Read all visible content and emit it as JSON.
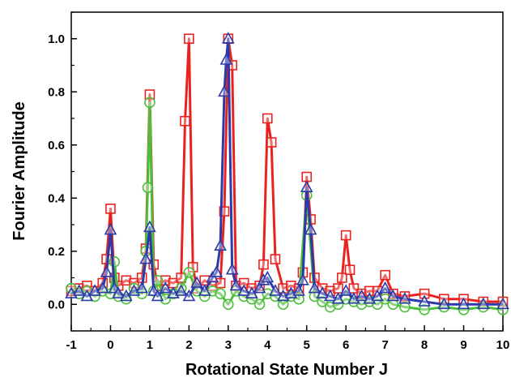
{
  "chart_data": {
    "type": "line",
    "xlabel": "Rotational State Number J",
    "ylabel": "Fourier Amplitude",
    "xlim": [
      -1,
      10
    ],
    "ylim": [
      -0.1,
      1.1
    ],
    "x_ticks": [
      -1,
      0,
      1,
      2,
      3,
      4,
      5,
      6,
      7,
      8,
      9,
      10
    ],
    "y_ticks": [
      0.0,
      0.2,
      0.4,
      0.6,
      0.8,
      1.0
    ],
    "x_tick_labels": [
      "-1",
      "0",
      "1",
      "2",
      "3",
      "4",
      "5",
      "6",
      "7",
      "8",
      "9",
      "10"
    ],
    "y_tick_labels": [
      "0.0",
      "0.2",
      "0.4",
      "0.6",
      "0.8",
      "1.0"
    ],
    "grid": false,
    "legend": "none",
    "series": [
      {
        "marker": "square",
        "color": "#e8231f",
        "x": [
          -1.0,
          -0.8,
          -0.6,
          -0.4,
          -0.2,
          -0.1,
          0.0,
          0.1,
          0.2,
          0.4,
          0.6,
          0.8,
          0.9,
          1.0,
          1.1,
          1.2,
          1.4,
          1.6,
          1.8,
          1.9,
          2.0,
          2.1,
          2.2,
          2.4,
          2.6,
          2.8,
          2.9,
          3.0,
          3.1,
          3.2,
          3.4,
          3.6,
          3.8,
          3.9,
          4.0,
          4.1,
          4.2,
          4.4,
          4.6,
          4.8,
          4.9,
          5.0,
          5.1,
          5.2,
          5.4,
          5.6,
          5.8,
          5.9,
          6.0,
          6.1,
          6.2,
          6.4,
          6.6,
          6.8,
          7.0,
          7.2,
          7.5,
          8.0,
          8.5,
          9.0,
          9.5,
          10.0
        ],
        "y": [
          0.05,
          0.06,
          0.07,
          0.05,
          0.08,
          0.17,
          0.36,
          0.1,
          0.07,
          0.09,
          0.08,
          0.1,
          0.21,
          0.79,
          0.15,
          0.07,
          0.09,
          0.08,
          0.1,
          0.69,
          1.0,
          0.14,
          0.06,
          0.09,
          0.07,
          0.08,
          0.35,
          1.0,
          0.9,
          0.07,
          0.08,
          0.06,
          0.07,
          0.15,
          0.7,
          0.61,
          0.17,
          0.06,
          0.07,
          0.06,
          0.12,
          0.48,
          0.32,
          0.1,
          0.06,
          0.05,
          0.06,
          0.1,
          0.26,
          0.13,
          0.06,
          0.04,
          0.05,
          0.05,
          0.11,
          0.04,
          0.03,
          0.04,
          0.02,
          0.02,
          0.01,
          0.01
        ]
      },
      {
        "marker": "circle",
        "color": "#4cbf3a",
        "x": [
          -1.0,
          -0.8,
          -0.6,
          -0.4,
          -0.2,
          0.0,
          0.1,
          0.2,
          0.4,
          0.6,
          0.8,
          0.9,
          0.95,
          1.0,
          1.1,
          1.2,
          1.4,
          1.6,
          1.8,
          2.0,
          2.2,
          2.4,
          2.6,
          2.8,
          3.0,
          3.2,
          3.4,
          3.6,
          3.8,
          4.0,
          4.2,
          4.4,
          4.6,
          4.8,
          5.0,
          5.2,
          5.4,
          5.6,
          5.8,
          6.0,
          6.2,
          6.4,
          6.6,
          6.8,
          7.0,
          7.2,
          7.5,
          8.0,
          8.5,
          9.0,
          9.5,
          10.0
        ],
        "y": [
          0.06,
          0.04,
          0.05,
          0.03,
          0.05,
          0.04,
          0.16,
          0.03,
          0.02,
          0.06,
          0.04,
          0.2,
          0.44,
          0.76,
          0.05,
          0.09,
          0.02,
          0.04,
          0.06,
          0.12,
          0.05,
          0.03,
          0.05,
          0.04,
          0.0,
          0.05,
          0.03,
          0.02,
          0.0,
          0.04,
          0.03,
          0.0,
          0.03,
          0.02,
          0.41,
          0.03,
          0.01,
          -0.01,
          0.0,
          0.02,
          0.01,
          0.0,
          0.01,
          0.0,
          0.02,
          0.0,
          -0.01,
          -0.02,
          -0.01,
          -0.02,
          -0.01,
          -0.02
        ]
      },
      {
        "marker": "triangle",
        "color": "#2b3aa8",
        "x": [
          -1.0,
          -0.8,
          -0.6,
          -0.4,
          -0.2,
          -0.1,
          0.0,
          0.1,
          0.2,
          0.4,
          0.6,
          0.8,
          0.9,
          1.0,
          1.1,
          1.2,
          1.4,
          1.6,
          1.8,
          2.0,
          2.2,
          2.4,
          2.6,
          2.7,
          2.8,
          2.9,
          2.95,
          3.0,
          3.1,
          3.2,
          3.4,
          3.6,
          3.8,
          3.9,
          4.0,
          4.2,
          4.4,
          4.6,
          4.8,
          4.9,
          5.0,
          5.1,
          5.2,
          5.4,
          5.6,
          5.8,
          6.0,
          6.2,
          6.4,
          6.6,
          6.8,
          7.0,
          7.2,
          7.5,
          8.0,
          8.5,
          9.0,
          9.5,
          10.0
        ],
        "y": [
          0.04,
          0.05,
          0.03,
          0.05,
          0.06,
          0.12,
          0.28,
          0.06,
          0.04,
          0.03,
          0.05,
          0.06,
          0.17,
          0.29,
          0.05,
          0.03,
          0.06,
          0.04,
          0.05,
          0.03,
          0.08,
          0.05,
          0.1,
          0.12,
          0.22,
          0.8,
          0.92,
          1.0,
          0.13,
          0.07,
          0.05,
          0.04,
          0.06,
          0.09,
          0.1,
          0.05,
          0.03,
          0.04,
          0.05,
          0.09,
          0.44,
          0.28,
          0.06,
          0.04,
          0.03,
          0.02,
          0.05,
          0.02,
          0.03,
          0.02,
          0.03,
          0.06,
          0.03,
          0.02,
          0.01,
          0.0,
          0.0,
          0.0,
          0.0
        ]
      }
    ]
  }
}
